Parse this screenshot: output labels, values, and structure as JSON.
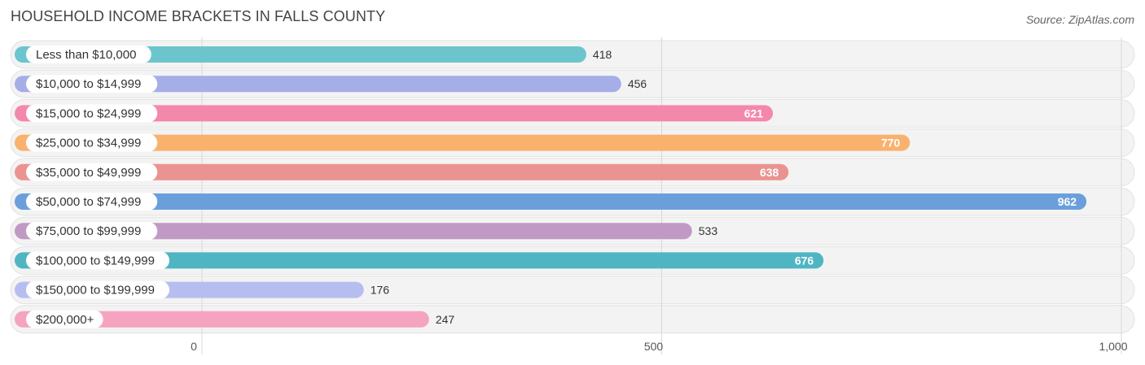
{
  "title": "HOUSEHOLD INCOME BRACKETS IN FALLS COUNTY",
  "source": "Source: ZipAtlas.com",
  "chart_data": {
    "type": "bar",
    "orientation": "horizontal",
    "categories": [
      "Less than $10,000",
      "$10,000 to $14,999",
      "$15,000 to $24,999",
      "$25,000 to $34,999",
      "$35,000 to $49,999",
      "$50,000 to $74,999",
      "$75,000 to $99,999",
      "$100,000 to $149,999",
      "$150,000 to $199,999",
      "$200,000+"
    ],
    "values": [
      418,
      456,
      621,
      770,
      638,
      962,
      533,
      676,
      176,
      247
    ],
    "value_labels": [
      "418",
      "456",
      "621",
      "770",
      "638",
      "962",
      "533",
      "676",
      "176",
      "247"
    ],
    "colors": [
      "#6cc5cc",
      "#a5aee6",
      "#f488ab",
      "#f8b26e",
      "#ea9390",
      "#6a9fdc",
      "#c09ac4",
      "#4fb5c2",
      "#b6bef0",
      "#f5a3c0"
    ],
    "xlim": [
      0,
      1000
    ],
    "xticks": [
      0,
      500,
      1000
    ],
    "xtick_labels": [
      "0",
      "500",
      "1,000"
    ],
    "grid": true
  }
}
